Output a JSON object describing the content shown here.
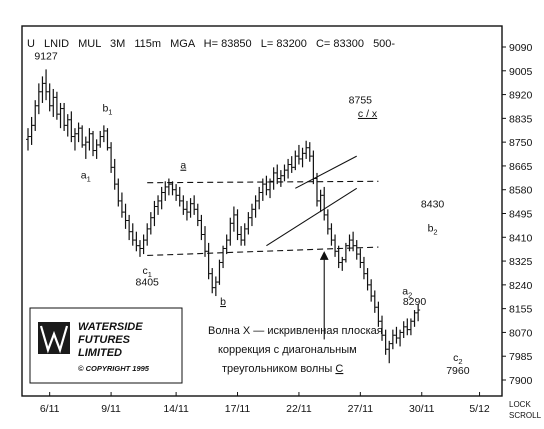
{
  "header": {
    "symbol": "U",
    "instrument": "LNID",
    "mode": "MUL",
    "period": "3M",
    "interval": "115m",
    "study": "MGA",
    "high": "H= 83850",
    "low": "L= 83200",
    "close": "C= 83300",
    "extra": "500-"
  },
  "corner": {
    "lock": "LOCK",
    "scroll": "SCROLL"
  },
  "logo": {
    "line1": "WATERSIDE",
    "line2": "FUTURES",
    "line3": "LIMITED",
    "copyright": "© COPYRIGHT 1995"
  },
  "note": {
    "line1": "Волна X — искривленная плоская",
    "line2": "коррекция с диагональным",
    "line3_prefix": "треугольником волны ",
    "line3_wave": "C"
  },
  "chart_data": {
    "type": "ohlc",
    "ylim": [
      7900,
      9090
    ],
    "y_ticks": [
      9090,
      9005,
      8920,
      8835,
      8750,
      8665,
      8580,
      8495,
      8410,
      8325,
      8240,
      8155,
      8070,
      7985,
      7900
    ],
    "x_range": [
      0,
      129
    ],
    "x_ticks": [
      {
        "label": "6/11",
        "x": 6
      },
      {
        "label": "9/11",
        "x": 23
      },
      {
        "label": "14/11",
        "x": 41
      },
      {
        "label": "17/11",
        "x": 58
      },
      {
        "label": "22/11",
        "x": 75
      },
      {
        "label": "27/11",
        "x": 92
      },
      {
        "label": "30/11",
        "x": 109
      },
      {
        "label": "5/12",
        "x": 125
      }
    ],
    "annotations": [
      {
        "text": "9127",
        "x": 5,
        "y": 9045
      },
      {
        "text": "b",
        "sub": "1",
        "x": 22,
        "y": 8860
      },
      {
        "text": "a",
        "sub": "1",
        "x": 16,
        "y": 8620
      },
      {
        "text": "a",
        "x": 43,
        "y": 8655,
        "underline": true
      },
      {
        "text": "c",
        "sub": "1",
        "x": 33,
        "y": 8278
      },
      {
        "text": "8405",
        "x": 33,
        "y": 8238
      },
      {
        "text": "b",
        "x": 54,
        "y": 8168,
        "underline": true
      },
      {
        "text": "8755",
        "x": 92,
        "y": 8888
      },
      {
        "text": "c / x",
        "x": 94,
        "y": 8840,
        "underline": true
      },
      {
        "text": "8430",
        "x": 112,
        "y": 8516
      },
      {
        "text": "b",
        "sub": "2",
        "x": 112,
        "y": 8430
      },
      {
        "text": "a",
        "sub": "2",
        "x": 105,
        "y": 8206
      },
      {
        "text": "8290",
        "x": 107,
        "y": 8168
      },
      {
        "text": "c",
        "sub": "2",
        "x": 119,
        "y": 7968
      },
      {
        "text": "7960",
        "x": 119,
        "y": 7922
      }
    ],
    "lines": [
      {
        "style": "dashed",
        "points": [
          [
            33,
            8605
          ],
          [
            97,
            8610
          ]
        ]
      },
      {
        "style": "dashed",
        "points": [
          [
            33,
            8345
          ],
          [
            97,
            8375
          ]
        ]
      },
      {
        "style": "solid",
        "points": [
          [
            74,
            8585
          ],
          [
            91,
            8700
          ]
        ]
      },
      {
        "style": "solid",
        "points": [
          [
            66,
            8380
          ],
          [
            91,
            8585
          ]
        ]
      },
      {
        "style": "arrow",
        "points": [
          [
            82,
            8045
          ],
          [
            82,
            8345
          ]
        ]
      }
    ],
    "series": [
      {
        "values": [
          [
            8760,
            8800,
            8720,
            8770
          ],
          [
            8770,
            8840,
            8740,
            8810
          ],
          [
            8810,
            8900,
            8790,
            8880
          ],
          [
            8880,
            8960,
            8850,
            8930
          ],
          [
            8930,
            8985,
            8890,
            8960
          ],
          [
            8960,
            9010,
            8900,
            8930
          ],
          [
            8930,
            8960,
            8860,
            8880
          ],
          [
            8880,
            8940,
            8840,
            8910
          ],
          [
            8910,
            8930,
            8830,
            8850
          ],
          [
            8850,
            8890,
            8800,
            8870
          ],
          [
            8870,
            8890,
            8790,
            8810
          ],
          [
            8810,
            8850,
            8770,
            8830
          ],
          [
            8830,
            8860,
            8750,
            8770
          ],
          [
            8770,
            8800,
            8720,
            8780
          ],
          [
            8780,
            8820,
            8750,
            8800
          ],
          [
            8800,
            8810,
            8730,
            8740
          ],
          [
            8740,
            8770,
            8690,
            8750
          ],
          [
            8750,
            8800,
            8720,
            8780
          ],
          [
            8780,
            8790,
            8700,
            8720
          ],
          [
            8720,
            8760,
            8690,
            8740
          ],
          [
            8740,
            8790,
            8730,
            8770
          ],
          [
            8770,
            8810,
            8750,
            8790
          ],
          [
            8790,
            8800,
            8720,
            8730
          ],
          [
            8730,
            8750,
            8640,
            8660
          ],
          [
            8660,
            8690,
            8580,
            8600
          ],
          [
            8600,
            8620,
            8520,
            8540
          ],
          [
            8540,
            8570,
            8480,
            8500
          ],
          [
            8500,
            8530,
            8440,
            8470
          ],
          [
            8470,
            8490,
            8400,
            8430
          ],
          [
            8430,
            8460,
            8380,
            8400
          ],
          [
            8400,
            8430,
            8360,
            8380
          ],
          [
            8380,
            8400,
            8340,
            8370
          ],
          [
            8370,
            8420,
            8350,
            8400
          ],
          [
            8400,
            8460,
            8380,
            8440
          ],
          [
            8440,
            8500,
            8420,
            8480
          ],
          [
            8480,
            8540,
            8450,
            8520
          ],
          [
            8520,
            8560,
            8490,
            8540
          ],
          [
            8540,
            8590,
            8510,
            8570
          ],
          [
            8570,
            8610,
            8540,
            8590
          ],
          [
            8590,
            8620,
            8560,
            8600
          ],
          [
            8600,
            8610,
            8560,
            8580
          ],
          [
            8580,
            8600,
            8540,
            8560
          ],
          [
            8560,
            8590,
            8520,
            8540
          ],
          [
            8540,
            8560,
            8490,
            8510
          ],
          [
            8510,
            8540,
            8470,
            8500
          ],
          [
            8500,
            8550,
            8480,
            8530
          ],
          [
            8530,
            8560,
            8490,
            8510
          ],
          [
            8510,
            8530,
            8450,
            8470
          ],
          [
            8470,
            8490,
            8400,
            8420
          ],
          [
            8420,
            8450,
            8340,
            8360
          ],
          [
            8360,
            8390,
            8260,
            8280
          ],
          [
            8280,
            8300,
            8210,
            8230
          ],
          [
            8230,
            8270,
            8200,
            8250
          ],
          [
            8250,
            8330,
            8240,
            8320
          ],
          [
            8320,
            8380,
            8300,
            8370
          ],
          [
            8370,
            8420,
            8350,
            8400
          ],
          [
            8400,
            8480,
            8380,
            8460
          ],
          [
            8460,
            8520,
            8430,
            8490
          ],
          [
            8490,
            8510,
            8400,
            8420
          ],
          [
            8420,
            8450,
            8380,
            8400
          ],
          [
            8400,
            8460,
            8380,
            8440
          ],
          [
            8440,
            8500,
            8420,
            8480
          ],
          [
            8480,
            8530,
            8450,
            8510
          ],
          [
            8510,
            8560,
            8480,
            8540
          ],
          [
            8540,
            8590,
            8510,
            8570
          ],
          [
            8570,
            8620,
            8540,
            8600
          ],
          [
            8600,
            8630,
            8560,
            8580
          ],
          [
            8580,
            8620,
            8550,
            8610
          ],
          [
            8610,
            8660,
            8580,
            8640
          ],
          [
            8640,
            8670,
            8600,
            8620
          ],
          [
            8620,
            8650,
            8590,
            8630
          ],
          [
            8630,
            8670,
            8610,
            8650
          ],
          [
            8650,
            8690,
            8620,
            8670
          ],
          [
            8670,
            8700,
            8640,
            8660
          ],
          [
            8660,
            8720,
            8650,
            8700
          ],
          [
            8700,
            8740,
            8670,
            8690
          ],
          [
            8690,
            8730,
            8660,
            8710
          ],
          [
            8710,
            8755,
            8690,
            8730
          ],
          [
            8730,
            8750,
            8680,
            8700
          ],
          [
            8700,
            8720,
            8600,
            8620
          ],
          [
            8620,
            8640,
            8520,
            8540
          ],
          [
            8540,
            8580,
            8500,
            8560
          ],
          [
            8560,
            8590,
            8470,
            8490
          ],
          [
            8490,
            8510,
            8420,
            8440
          ],
          [
            8440,
            8460,
            8380,
            8400
          ],
          [
            8400,
            8420,
            8340,
            8360
          ],
          [
            8360,
            8380,
            8300,
            8320
          ],
          [
            8320,
            8340,
            8290,
            8330
          ],
          [
            8330,
            8390,
            8320,
            8380
          ],
          [
            8380,
            8420,
            8360,
            8400
          ],
          [
            8400,
            8430,
            8360,
            8380
          ],
          [
            8380,
            8400,
            8330,
            8350
          ],
          [
            8350,
            8370,
            8300,
            8320
          ],
          [
            8320,
            8340,
            8260,
            8280
          ],
          [
            8280,
            8300,
            8220,
            8240
          ],
          [
            8240,
            8260,
            8180,
            8200
          ],
          [
            8200,
            8220,
            8140,
            8160
          ],
          [
            8160,
            8180,
            8090,
            8110
          ],
          [
            8110,
            8130,
            8040,
            8060
          ],
          [
            8060,
            8080,
            7990,
            8010
          ],
          [
            8010,
            8040,
            7960,
            8030
          ],
          [
            8030,
            8080,
            8010,
            8060
          ],
          [
            8060,
            8090,
            8030,
            8050
          ],
          [
            8050,
            8080,
            8020,
            8070
          ],
          [
            8070,
            8110,
            8050,
            8090
          ],
          [
            8090,
            8120,
            8060,
            8080
          ],
          [
            8080,
            8120,
            8060,
            8110
          ],
          [
            8110,
            8150,
            8090,
            8140
          ],
          [
            8140,
            8170,
            8110,
            8150
          ]
        ]
      }
    ]
  }
}
